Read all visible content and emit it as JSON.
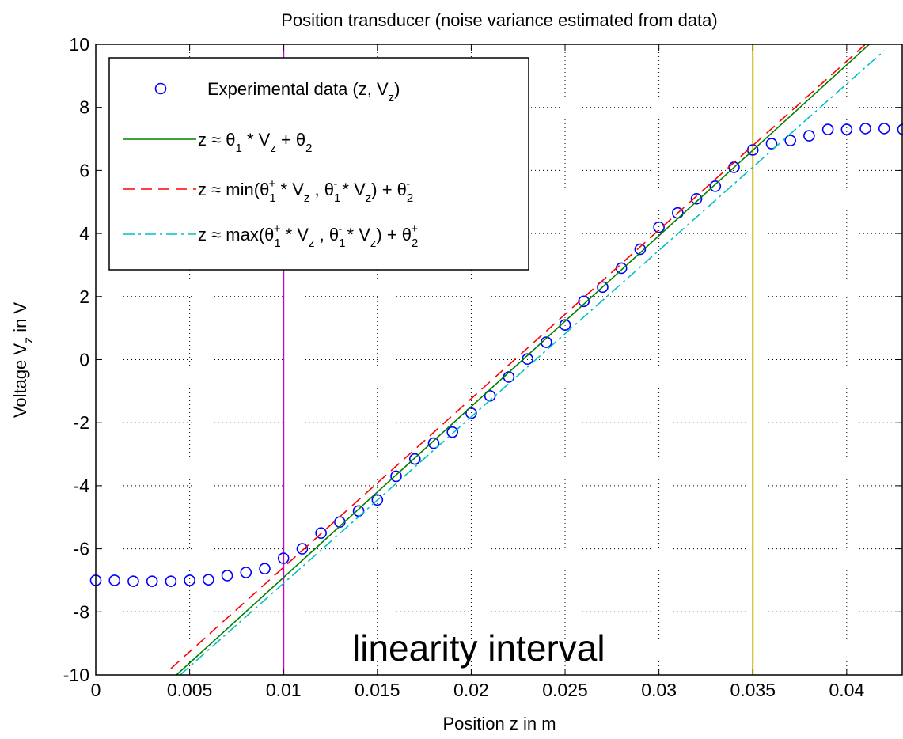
{
  "chart_data": {
    "type": "line",
    "title": "Position transducer (noise variance estimated from data)",
    "xlabel": {
      "main": "Position z in m"
    },
    "ylabel": {
      "prefix": "Voltage V",
      "sub": "z",
      "suffix": " in V"
    },
    "xlim": [
      0,
      0.043
    ],
    "ylim": [
      -10,
      10
    ],
    "xticks": [
      0,
      0.005,
      0.01,
      0.015,
      0.02,
      0.025,
      0.03,
      0.035,
      0.04
    ],
    "xtick_labels": [
      "0",
      "0.005",
      "0.01",
      "0.015",
      "0.02",
      "0.025",
      "0.03",
      "0.035",
      "0.04"
    ],
    "yticks": [
      -10,
      -8,
      -6,
      -4,
      -2,
      0,
      2,
      4,
      6,
      8,
      10
    ],
    "ytick_labels": [
      "-10",
      "-8",
      "-6",
      "-4",
      "-2",
      "0",
      "2",
      "4",
      "6",
      "8",
      "10"
    ],
    "grid": true,
    "legend_position": "top-left",
    "annotation": "linearity interval",
    "vertical_lines": [
      {
        "x": 0.01,
        "color": "#cc00cc"
      },
      {
        "x": 0.035,
        "color": "#c8b400"
      }
    ],
    "series": [
      {
        "kind": "scatter",
        "color": "#0000ff",
        "legend": {
          "main": "Experimental data (z, V",
          "sub": "z",
          "tail": ")"
        },
        "x": [
          0,
          0.001,
          0.002,
          0.003,
          0.004,
          0.005,
          0.006,
          0.007,
          0.008,
          0.009,
          0.01,
          0.011,
          0.012,
          0.013,
          0.014,
          0.015,
          0.016,
          0.017,
          0.018,
          0.019,
          0.02,
          0.021,
          0.022,
          0.023,
          0.024,
          0.025,
          0.026,
          0.027,
          0.028,
          0.029,
          0.03,
          0.031,
          0.032,
          0.033,
          0.034,
          0.035,
          0.036,
          0.037,
          0.038,
          0.039,
          0.04,
          0.041,
          0.042,
          0.043
        ],
        "y": [
          -7.0,
          -7.0,
          -7.03,
          -7.03,
          -7.03,
          -7.0,
          -6.98,
          -6.85,
          -6.75,
          -6.63,
          -6.3,
          -6.0,
          -5.5,
          -5.15,
          -4.8,
          -4.45,
          -3.7,
          -3.15,
          -2.65,
          -2.3,
          -1.7,
          -1.15,
          -0.55,
          0.02,
          0.55,
          1.1,
          1.85,
          2.3,
          2.9,
          3.5,
          4.2,
          4.65,
          5.1,
          5.5,
          6.1,
          6.65,
          6.85,
          6.95,
          7.1,
          7.3,
          7.3,
          7.33,
          7.33,
          7.3
        ]
      },
      {
        "kind": "line",
        "color": "#008000",
        "dash": "",
        "legend": {
          "parts": [
            "z ≈ θ",
            "_1",
            " * V",
            "_z",
            " + θ",
            "_2"
          ]
        },
        "x": [
          0.0043,
          0.0412
        ],
        "y": [
          -10,
          10
        ]
      },
      {
        "kind": "line",
        "color": "#ff0000",
        "dash": "14,8",
        "legend": {
          "parts": [
            "z ≈ min(θ",
            "_1",
            "^+",
            " * V",
            "_z",
            " , θ",
            "_1",
            "^-",
            " * V",
            "_z",
            ") + θ",
            "_2",
            "^-"
          ]
        },
        "x": [
          0.004,
          0.041
        ],
        "y": [
          -9.8,
          10
        ]
      },
      {
        "kind": "line",
        "color": "#00c0c0",
        "dash": "14,5,3,5",
        "legend": {
          "parts": [
            "z ≈ max(θ",
            "_1",
            "^+",
            " * V",
            "_z",
            " , θ",
            "_1",
            "^-",
            " * V",
            "_z",
            ") + θ",
            "_2",
            "^+"
          ]
        },
        "x": [
          0.0045,
          0.042
        ],
        "y": [
          -10,
          9.8
        ]
      }
    ]
  }
}
